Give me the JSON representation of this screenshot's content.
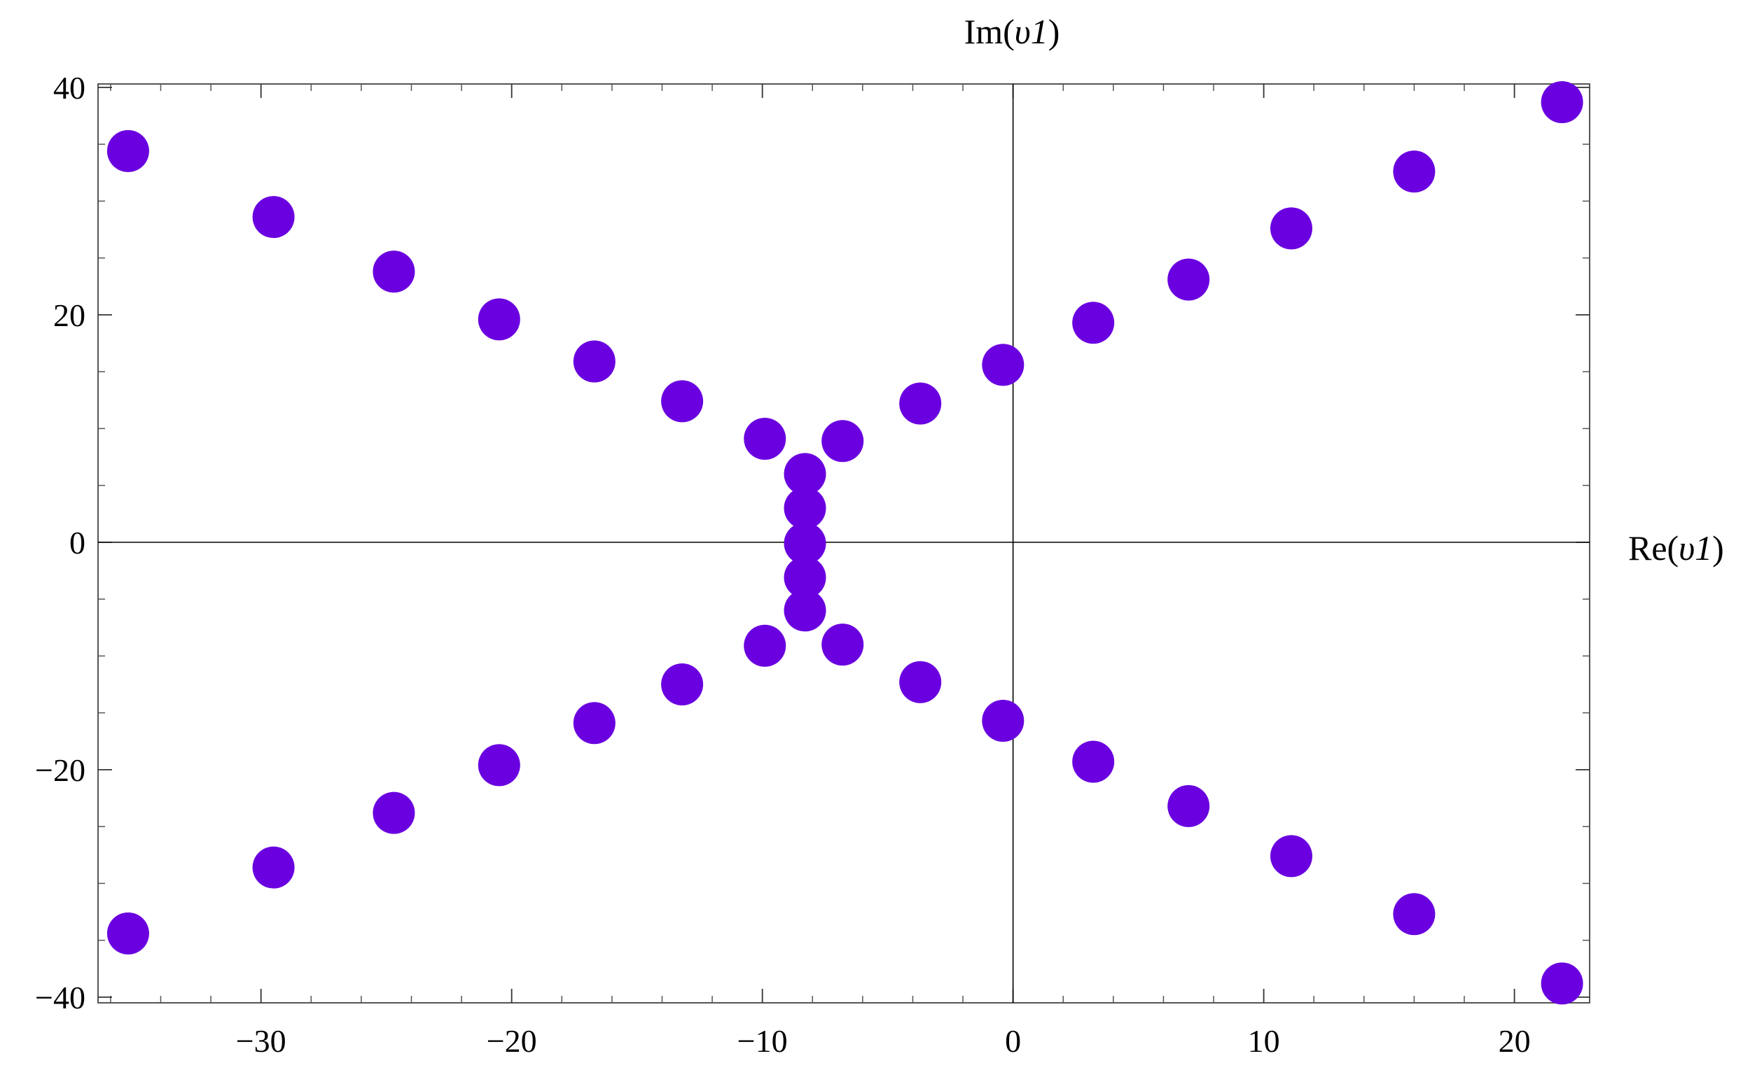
{
  "chart_data": {
    "type": "scatter",
    "xlabel": "Re(υ1)",
    "ylabel": "Im(υ1)",
    "xlim": [
      -36.5,
      23
    ],
    "ylim": [
      -40.5,
      40.3
    ],
    "grid": false,
    "frame": true,
    "axes_through_origin": true,
    "marker_color": "#6a00e0",
    "x_ticks": [
      -30,
      -20,
      -10,
      0,
      10,
      20
    ],
    "x_tick_labels": [
      "−30",
      "−20",
      "−10",
      "0",
      "10",
      "20"
    ],
    "y_ticks": [
      -40,
      -20,
      0,
      20,
      40
    ],
    "y_tick_labels": [
      "−40",
      "−20",
      "0",
      "20",
      "40"
    ],
    "points": [
      {
        "x": -35.3,
        "y": 34.4
      },
      {
        "x": -29.5,
        "y": 28.6
      },
      {
        "x": -24.7,
        "y": 23.8
      },
      {
        "x": -20.5,
        "y": 19.6
      },
      {
        "x": -16.7,
        "y": 15.9
      },
      {
        "x": -13.2,
        "y": 12.4
      },
      {
        "x": -9.9,
        "y": 9.1
      },
      {
        "x": -6.8,
        "y": 8.9
      },
      {
        "x": -8.3,
        "y": 6.0
      },
      {
        "x": -8.3,
        "y": 3.0
      },
      {
        "x": -8.3,
        "y": -0.1
      },
      {
        "x": -8.3,
        "y": -3.1
      },
      {
        "x": -8.3,
        "y": -6.0
      },
      {
        "x": -9.9,
        "y": -9.1
      },
      {
        "x": -6.8,
        "y": -9.0
      },
      {
        "x": -13.2,
        "y": -12.5
      },
      {
        "x": -16.7,
        "y": -15.9
      },
      {
        "x": -20.5,
        "y": -19.6
      },
      {
        "x": -24.7,
        "y": -23.8
      },
      {
        "x": -29.5,
        "y": -28.6
      },
      {
        "x": -35.3,
        "y": -34.4
      },
      {
        "x": -3.7,
        "y": 12.2
      },
      {
        "x": -0.4,
        "y": 15.6
      },
      {
        "x": 3.2,
        "y": 19.3
      },
      {
        "x": 7.0,
        "y": 23.1
      },
      {
        "x": 11.1,
        "y": 27.6
      },
      {
        "x": 16.0,
        "y": 32.6
      },
      {
        "x": 21.9,
        "y": 38.7
      },
      {
        "x": -3.7,
        "y": -12.3
      },
      {
        "x": -0.4,
        "y": -15.7
      },
      {
        "x": 3.2,
        "y": -19.3
      },
      {
        "x": 7.0,
        "y": -23.2
      },
      {
        "x": 11.1,
        "y": -27.6
      },
      {
        "x": 16.0,
        "y": -32.7
      },
      {
        "x": 21.9,
        "y": -38.8
      }
    ]
  }
}
